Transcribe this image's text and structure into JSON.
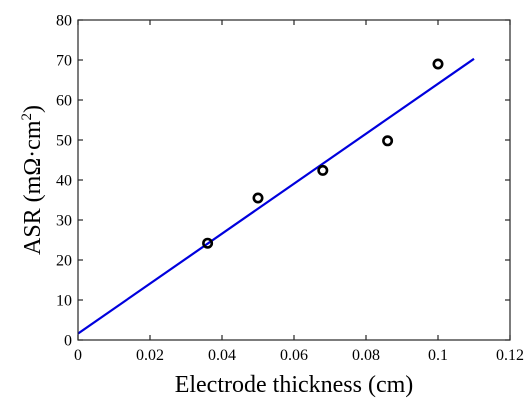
{
  "chart_data": {
    "type": "scatter",
    "title": "",
    "xlabel": "Electrode thickness (cm)",
    "ylabel": {
      "main": "ASR (mΩ·cm",
      "superscript": "2",
      "close": ")"
    },
    "xlim": [
      0,
      0.12
    ],
    "ylim": [
      0,
      80
    ],
    "x_ticks": [
      0,
      0.02,
      0.04,
      0.06,
      0.08,
      0.1,
      0.12
    ],
    "x_tick_labels": [
      "0",
      "0.02",
      "0.04",
      "0.06",
      "0.08",
      "0.1",
      "0.12"
    ],
    "y_ticks": [
      0,
      10,
      20,
      30,
      40,
      50,
      60,
      70,
      80
    ],
    "y_tick_labels": [
      "0",
      "10",
      "20",
      "30",
      "40",
      "50",
      "60",
      "70",
      "80"
    ],
    "grid": false,
    "legend": "none",
    "series": [
      {
        "type": "scatter",
        "marker": "open-circle",
        "color": "#000000",
        "x": [
          0.036,
          0.05,
          0.068,
          0.086,
          0.1
        ],
        "y": [
          24.2,
          35.5,
          42.4,
          49.8,
          69.0
        ]
      },
      {
        "type": "line",
        "color": "#0000dd",
        "x": [
          0,
          0.11
        ],
        "y": [
          1.6,
          70.3
        ]
      }
    ]
  }
}
